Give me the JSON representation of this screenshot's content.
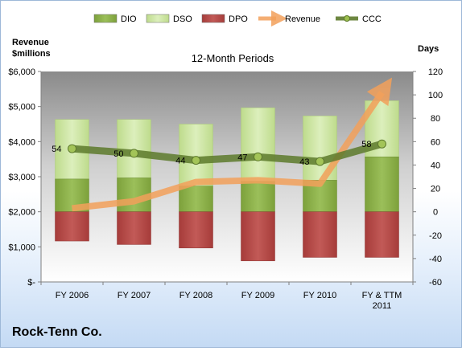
{
  "chart_data": {
    "type": "bar",
    "title": "12-Month Periods",
    "company": "Rock-Tenn Co.",
    "left_axis_label": [
      "Revenue",
      "$millions"
    ],
    "right_axis_label": "Days",
    "left_ticks": [
      "$-",
      "$1,000",
      "$2,000",
      "$3,000",
      "$4,000",
      "$5,000",
      "$6,000"
    ],
    "left_ylim": [
      0,
      6000
    ],
    "right_ticks": [
      "-60",
      "-40",
      "-20",
      "0",
      "20",
      "40",
      "60",
      "80",
      "100",
      "120"
    ],
    "right_ylim": [
      -60,
      120
    ],
    "categories": [
      "FY 2006",
      "FY 2007",
      "FY 2008",
      "FY 2009",
      "FY 2010",
      "FY & TTM 2011"
    ],
    "category_lines": [
      [
        "FY 2006"
      ],
      [
        "FY 2007"
      ],
      [
        "FY 2008"
      ],
      [
        "FY 2009"
      ],
      [
        "FY 2010"
      ],
      [
        "FY & TTM",
        "2011"
      ]
    ],
    "legend": [
      {
        "key": "DIO",
        "label": "DIO"
      },
      {
        "key": "DSO",
        "label": "DSO"
      },
      {
        "key": "DPO",
        "label": "DPO"
      },
      {
        "key": "Revenue",
        "label": "Revenue"
      },
      {
        "key": "CCC",
        "label": "CCC"
      }
    ],
    "colors": {
      "DIO": "#8aaf4a",
      "DSO": "#cfe5a6",
      "DPO": "#b84a48",
      "Revenue": "#f2a05a",
      "CCC": "#5d7a2c"
    },
    "series": [
      {
        "name": "DIO",
        "axis": "right",
        "values": [
          28,
          29,
          22,
          26,
          27,
          47
        ]
      },
      {
        "name": "DSO",
        "axis": "right",
        "values": [
          79,
          79,
          75,
          89,
          82,
          95
        ]
      },
      {
        "name": "DPO",
        "axis": "right",
        "values": [
          -25,
          -28,
          -31,
          -42,
          -39,
          -39
        ]
      },
      {
        "name": "Revenue",
        "axis": "left",
        "values": [
          2100,
          2300,
          2850,
          2900,
          2800,
          5400
        ]
      },
      {
        "name": "CCC",
        "axis": "right",
        "values": [
          54,
          50,
          44,
          47,
          43,
          58
        ]
      }
    ],
    "ccc_labels": [
      "54",
      "50",
      "44",
      "47",
      "43",
      "58"
    ],
    "legend_placement": "top",
    "grid": false
  }
}
